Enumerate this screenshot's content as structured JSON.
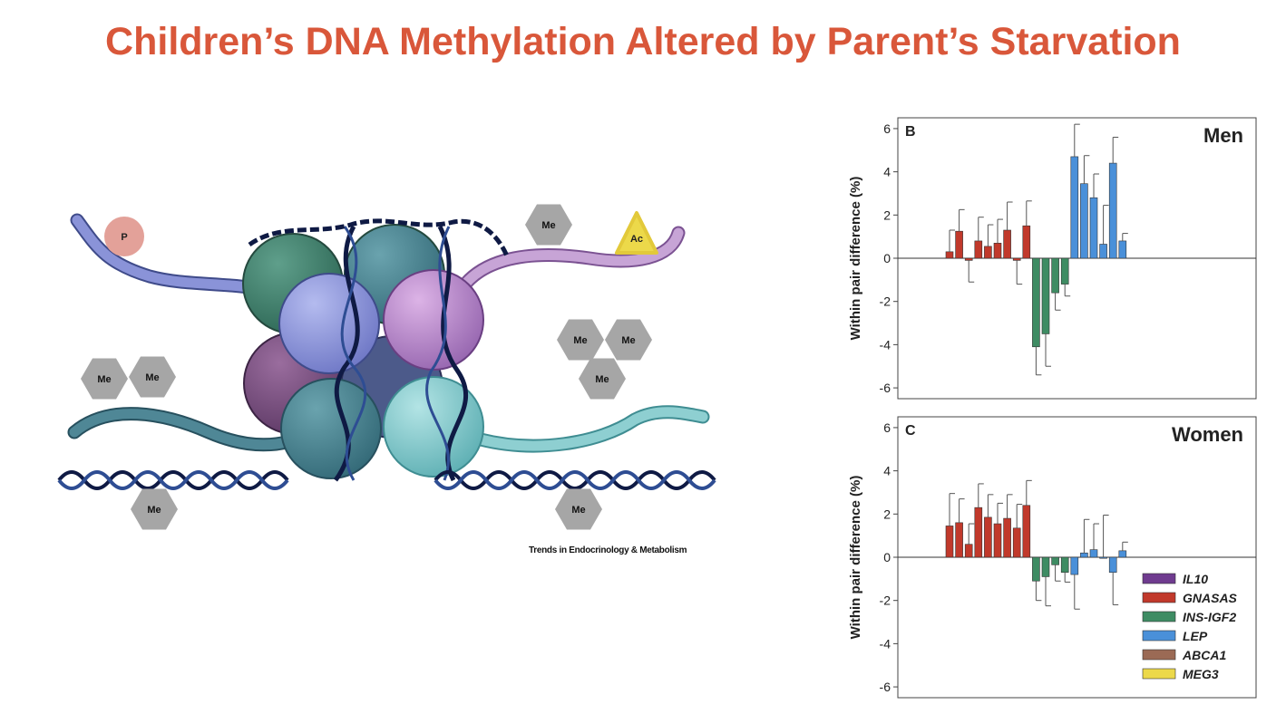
{
  "slide": {
    "title": "Children’s DNA Methylation Altered by Parent’s Starvation"
  },
  "illustration": {
    "credit": "Trends in Endocrinology & Metabolism",
    "marks": {
      "phospho": "P",
      "acetyl": "Ac",
      "methyl": "Me"
    },
    "colors": {
      "methyl": "#a6a6a6",
      "phospho": "#e3a199",
      "acetyl": "#ecd94a",
      "dna": "#1c2b5a"
    }
  },
  "chart_data": [
    {
      "type": "bar",
      "panel_letter": "B",
      "title": "Men",
      "xlabel": "",
      "ylabel": "Within pair difference (%)",
      "ylim": [
        -6.5,
        6.5
      ],
      "yticks": [
        -6,
        -4,
        -2,
        0,
        2,
        4,
        6
      ],
      "series": [
        {
          "name": "GNASAS",
          "color": "#c1392b",
          "values": [
            0.3,
            1.25,
            -0.1,
            0.8,
            0.55,
            0.7,
            1.3,
            -0.1,
            1.5
          ],
          "errors": [
            1.0,
            1.0,
            1.0,
            1.1,
            1.0,
            1.1,
            1.3,
            1.1,
            1.15
          ]
        },
        {
          "name": "INS-IGF2",
          "color": "#3e8c63",
          "values": [
            -4.1,
            -3.5,
            -1.6,
            -1.2
          ],
          "errors": [
            1.3,
            1.5,
            0.8,
            0.55
          ]
        },
        {
          "name": "LEP",
          "color": "#4a90d9",
          "values": [
            4.7,
            3.45,
            2.8,
            0.65,
            4.4,
            0.8
          ],
          "errors": [
            1.5,
            1.3,
            1.1,
            1.8,
            1.2,
            0.35
          ]
        }
      ]
    },
    {
      "type": "bar",
      "panel_letter": "C",
      "title": "Women",
      "xlabel": "",
      "ylabel": "Within pair difference (%)",
      "ylim": [
        -6.5,
        6.5
      ],
      "yticks": [
        -6,
        -4,
        -2,
        0,
        2,
        4,
        6
      ],
      "series": [
        {
          "name": "GNASAS",
          "color": "#c1392b",
          "values": [
            1.45,
            1.6,
            0.6,
            2.3,
            1.85,
            1.55,
            1.8,
            1.35,
            2.4
          ],
          "errors": [
            1.5,
            1.1,
            0.95,
            1.1,
            1.05,
            0.95,
            1.1,
            1.1,
            1.15
          ]
        },
        {
          "name": "INS-IGF2",
          "color": "#3e8c63",
          "values": [
            -1.1,
            -0.9,
            -0.35,
            -0.7
          ],
          "errors": [
            0.9,
            1.35,
            0.75,
            0.45
          ]
        },
        {
          "name": "LEP",
          "color": "#4a90d9",
          "values": [
            -0.8,
            0.2,
            0.35,
            0.0,
            -0.7,
            0.3
          ],
          "errors": [
            1.6,
            1.55,
            1.2,
            1.95,
            1.5,
            0.4
          ]
        }
      ],
      "legend": {
        "placement": "bottom-right",
        "entries": [
          {
            "name": "IL10",
            "color": "#6f3b8f"
          },
          {
            "name": "GNASAS",
            "color": "#c1392b"
          },
          {
            "name": "INS-IGF2",
            "color": "#3e8c63"
          },
          {
            "name": "LEP",
            "color": "#4a90d9"
          },
          {
            "name": "ABCA1",
            "color": "#9b6a55"
          },
          {
            "name": "MEG3",
            "color": "#ecd94a"
          }
        ]
      }
    }
  ]
}
